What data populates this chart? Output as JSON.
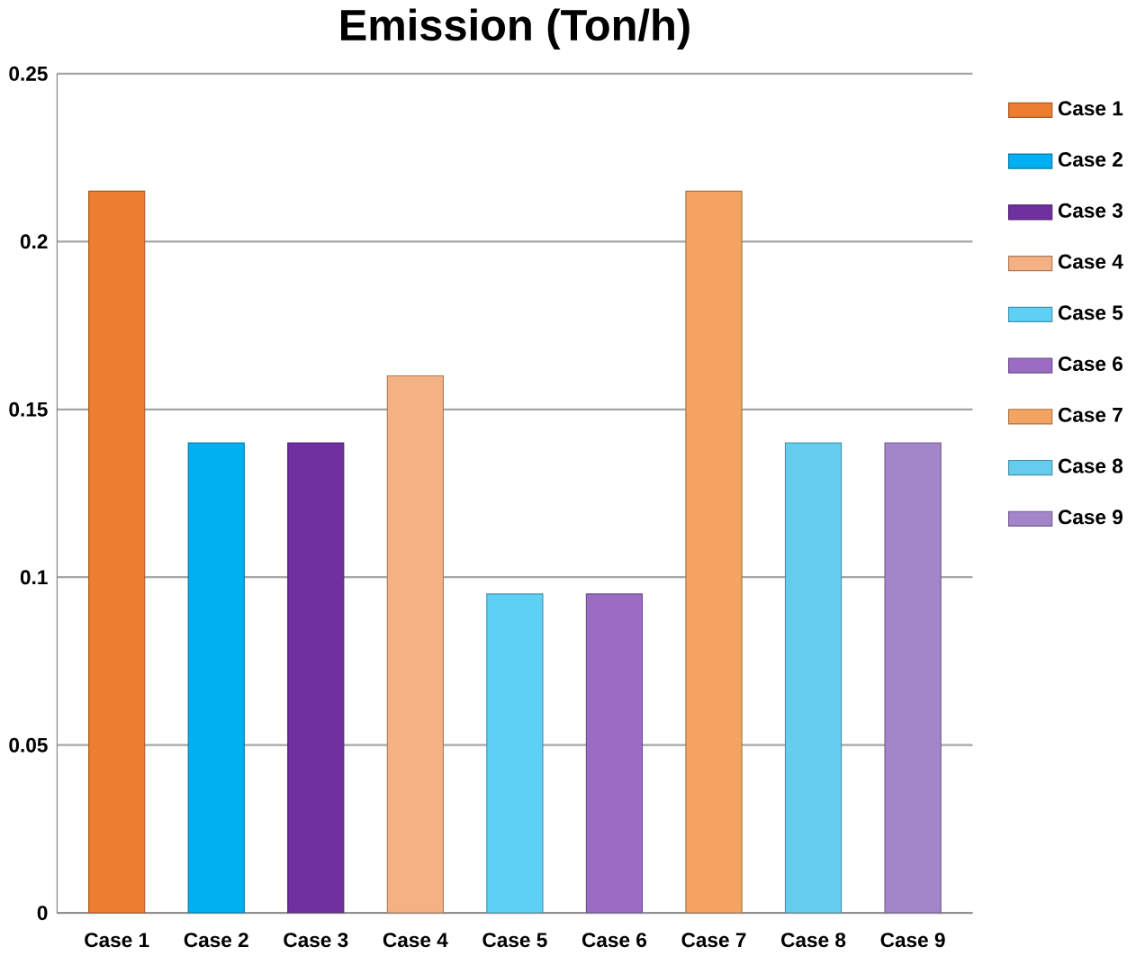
{
  "chart_data": {
    "type": "bar",
    "title": "Emission (Ton/h)",
    "categories": [
      "Case 1",
      "Case 2",
      "Case 3",
      "Case 4",
      "Case 5",
      "Case 6",
      "Case 7",
      "Case 8",
      "Case 9"
    ],
    "series": [
      {
        "name": "Case 1",
        "color": "#ed7d31",
        "values": [
          0.215,
          null,
          null,
          null,
          null,
          null,
          null,
          null,
          null
        ]
      },
      {
        "name": "Case 2",
        "color": "#00b0f0",
        "values": [
          null,
          0.14,
          null,
          null,
          null,
          null,
          null,
          null,
          null
        ]
      },
      {
        "name": "Case 3",
        "color": "#7030a0",
        "values": [
          null,
          null,
          0.14,
          null,
          null,
          null,
          null,
          null,
          null
        ]
      },
      {
        "name": "Case 4",
        "color": "#f4b183",
        "values": [
          null,
          null,
          null,
          0.16,
          null,
          null,
          null,
          null,
          null
        ]
      },
      {
        "name": "Case 5",
        "color": "#5fd0f5",
        "values": [
          null,
          null,
          null,
          null,
          0.095,
          null,
          null,
          null,
          null
        ]
      },
      {
        "name": "Case 6",
        "color": "#9b6cc4",
        "values": [
          null,
          null,
          null,
          null,
          null,
          0.095,
          null,
          null,
          null
        ]
      },
      {
        "name": "Case 7",
        "color": "#f4a460",
        "values": [
          null,
          null,
          null,
          null,
          null,
          null,
          0.215,
          null,
          null
        ]
      },
      {
        "name": "Case 8",
        "color": "#66ccee",
        "values": [
          null,
          null,
          null,
          null,
          null,
          null,
          null,
          0.14,
          null
        ]
      },
      {
        "name": "Case 9",
        "color": "#a385c9",
        "values": [
          null,
          null,
          null,
          null,
          null,
          null,
          null,
          null,
          0.14
        ]
      }
    ],
    "ylim": [
      0,
      0.25
    ],
    "yticks": [
      0,
      0.05,
      0.1,
      0.15,
      0.2,
      0.25
    ],
    "grid": "y",
    "legend": "right"
  }
}
